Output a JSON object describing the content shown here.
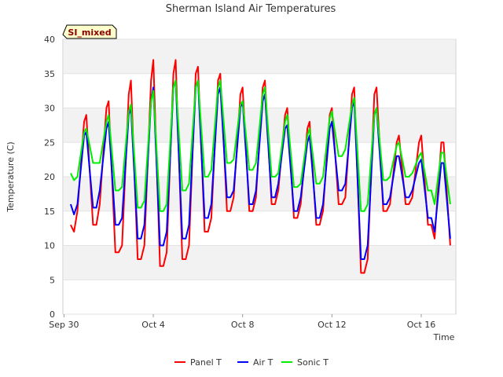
{
  "chart_data": {
    "type": "line",
    "title": "Sherman Island Air Temperatures",
    "xlabel": "Time",
    "ylabel": "Temperature (C)",
    "badge": "SI_mixed",
    "ylim": [
      0,
      40
    ],
    "yticks": [
      0,
      5,
      10,
      15,
      20,
      25,
      30,
      35,
      40
    ],
    "xlim": [
      -0.05,
      17.55
    ],
    "xtick_positions": [
      0,
      4,
      8,
      12,
      16
    ],
    "xtick_labels": [
      "Sep 30",
      "Oct 4",
      "Oct 8",
      "Oct 12",
      "Oct 16"
    ],
    "x_unit": "days since Sep 30",
    "grid": true,
    "legend_position": "bottom",
    "series": [
      {
        "name": "Panel T",
        "color": "#ff0000",
        "x": [
          0.3,
          0.45,
          0.6,
          0.9,
          1.0,
          1.3,
          1.45,
          1.6,
          1.9,
          2.0,
          2.3,
          2.45,
          2.6,
          2.9,
          3.0,
          3.3,
          3.45,
          3.6,
          3.9,
          4.0,
          4.3,
          4.45,
          4.6,
          4.9,
          5.0,
          5.3,
          5.45,
          5.6,
          5.9,
          6.0,
          6.3,
          6.45,
          6.6,
          6.9,
          7.0,
          7.3,
          7.45,
          7.6,
          7.9,
          8.0,
          8.3,
          8.45,
          8.6,
          8.9,
          9.0,
          9.3,
          9.45,
          9.6,
          9.9,
          10.0,
          10.3,
          10.45,
          10.6,
          10.9,
          11.0,
          11.3,
          11.45,
          11.6,
          11.9,
          12.0,
          12.3,
          12.45,
          12.6,
          12.9,
          13.0,
          13.3,
          13.45,
          13.6,
          13.9,
          14.0,
          14.3,
          14.45,
          14.6,
          14.9,
          15.0,
          15.3,
          15.45,
          15.6,
          15.9,
          16.0,
          16.3,
          16.45,
          16.6,
          16.9,
          17.0,
          17.3
        ],
        "values": [
          13.0,
          12.0,
          15.0,
          28.0,
          29.0,
          13.0,
          13.0,
          16.0,
          30.0,
          31.0,
          9.0,
          9.0,
          10.0,
          32.0,
          34.0,
          8.0,
          8.0,
          10.0,
          34.0,
          37.0,
          7.0,
          7.0,
          9.0,
          35.0,
          37.0,
          8.0,
          8.0,
          10.0,
          35.0,
          36.0,
          12.0,
          12.0,
          14.0,
          34.0,
          35.0,
          15.0,
          15.0,
          17.0,
          32.0,
          33.0,
          15.0,
          15.0,
          17.0,
          33.0,
          34.0,
          16.0,
          16.0,
          18.0,
          29.0,
          30.0,
          14.0,
          14.0,
          16.0,
          27.0,
          28.0,
          13.0,
          13.0,
          15.0,
          29.0,
          30.0,
          16.0,
          16.0,
          17.0,
          32.0,
          33.0,
          6.0,
          6.0,
          8.0,
          32.0,
          33.0,
          15.0,
          15.0,
          16.0,
          25.0,
          26.0,
          16.0,
          16.0,
          17.0,
          25.0,
          26.0,
          13.0,
          13.0,
          11.0,
          25.0,
          25.0,
          10.0
        ]
      },
      {
        "name": "Air T",
        "color": "#0000ff",
        "x": [
          0.3,
          0.45,
          0.6,
          0.9,
          1.0,
          1.3,
          1.45,
          1.6,
          1.9,
          2.0,
          2.3,
          2.45,
          2.6,
          2.9,
          3.0,
          3.3,
          3.45,
          3.6,
          3.9,
          4.0,
          4.3,
          4.45,
          4.6,
          4.9,
          5.0,
          5.3,
          5.45,
          5.6,
          5.9,
          6.0,
          6.3,
          6.45,
          6.6,
          6.9,
          7.0,
          7.3,
          7.45,
          7.6,
          7.9,
          8.0,
          8.3,
          8.45,
          8.6,
          8.9,
          9.0,
          9.3,
          9.45,
          9.6,
          9.9,
          10.0,
          10.3,
          10.45,
          10.6,
          10.9,
          11.0,
          11.3,
          11.45,
          11.6,
          11.9,
          12.0,
          12.3,
          12.45,
          12.6,
          12.9,
          13.0,
          13.3,
          13.45,
          13.6,
          13.9,
          14.0,
          14.3,
          14.45,
          14.6,
          14.9,
          15.0,
          15.3,
          15.45,
          15.6,
          15.9,
          16.0,
          16.3,
          16.45,
          16.6,
          16.9,
          17.0,
          17.3
        ],
        "values": [
          16.0,
          14.5,
          16.0,
          26.0,
          26.5,
          15.5,
          15.5,
          18.0,
          27.0,
          28.0,
          13.0,
          13.0,
          14.0,
          29.0,
          30.0,
          11.0,
          11.0,
          13.0,
          31.0,
          33.0,
          10.0,
          10.0,
          12.0,
          33.0,
          34.0,
          11.0,
          11.0,
          13.0,
          33.0,
          34.0,
          14.0,
          14.0,
          16.0,
          32.0,
          33.0,
          17.0,
          17.0,
          18.0,
          30.0,
          31.0,
          16.0,
          16.0,
          18.0,
          31.0,
          32.0,
          17.0,
          17.0,
          19.0,
          27.0,
          27.5,
          15.0,
          15.0,
          17.0,
          25.0,
          26.0,
          14.0,
          14.0,
          16.0,
          27.0,
          28.0,
          18.0,
          18.0,
          19.0,
          30.0,
          31.0,
          8.0,
          8.0,
          10.0,
          29.0,
          30.0,
          16.0,
          16.0,
          17.0,
          23.0,
          23.0,
          17.0,
          17.0,
          18.0,
          22.0,
          22.5,
          14.0,
          14.0,
          12.0,
          22.0,
          22.0,
          11.0
        ]
      },
      {
        "name": "Sonic T",
        "color": "#00ee00",
        "x": [
          0.3,
          0.45,
          0.6,
          0.9,
          1.0,
          1.3,
          1.45,
          1.6,
          1.9,
          2.0,
          2.3,
          2.45,
          2.6,
          2.9,
          3.0,
          3.3,
          3.45,
          3.6,
          3.9,
          4.0,
          4.3,
          4.45,
          4.6,
          4.9,
          5.0,
          5.3,
          5.45,
          5.6,
          5.9,
          6.0,
          6.3,
          6.45,
          6.6,
          6.9,
          7.0,
          7.3,
          7.45,
          7.6,
          7.9,
          8.0,
          8.3,
          8.45,
          8.6,
          8.9,
          9.0,
          9.3,
          9.45,
          9.6,
          9.9,
          10.0,
          10.3,
          10.45,
          10.6,
          10.9,
          11.0,
          11.3,
          11.45,
          11.6,
          11.9,
          12.0,
          12.3,
          12.45,
          12.6,
          12.9,
          13.0,
          13.3,
          13.45,
          13.6,
          13.9,
          14.0,
          14.3,
          14.45,
          14.6,
          14.9,
          15.0,
          15.3,
          15.45,
          15.6,
          15.9,
          16.0,
          16.3,
          16.45,
          16.6,
          16.9,
          17.0,
          17.3
        ],
        "values": [
          20.5,
          19.5,
          20.0,
          26.5,
          27.0,
          22.0,
          22.0,
          22.0,
          28.0,
          29.0,
          18.0,
          18.0,
          18.5,
          29.5,
          30.5,
          15.5,
          15.5,
          16.5,
          31.0,
          32.5,
          15.0,
          15.0,
          16.0,
          33.0,
          34.0,
          18.0,
          18.0,
          19.0,
          33.0,
          34.0,
          20.0,
          20.0,
          21.0,
          33.0,
          34.0,
          22.0,
          22.0,
          22.5,
          30.5,
          31.0,
          21.0,
          21.0,
          22.0,
          32.0,
          33.0,
          20.0,
          20.0,
          20.5,
          28.0,
          29.0,
          18.5,
          18.5,
          19.0,
          26.0,
          27.0,
          19.0,
          19.0,
          20.0,
          28.5,
          29.5,
          23.0,
          23.0,
          24.0,
          30.5,
          31.5,
          15.0,
          15.0,
          16.0,
          29.0,
          30.0,
          19.5,
          19.5,
          20.0,
          24.5,
          25.0,
          20.0,
          20.0,
          20.5,
          23.0,
          23.5,
          18.0,
          18.0,
          16.0,
          23.5,
          23.5,
          16.0
        ]
      }
    ]
  }
}
